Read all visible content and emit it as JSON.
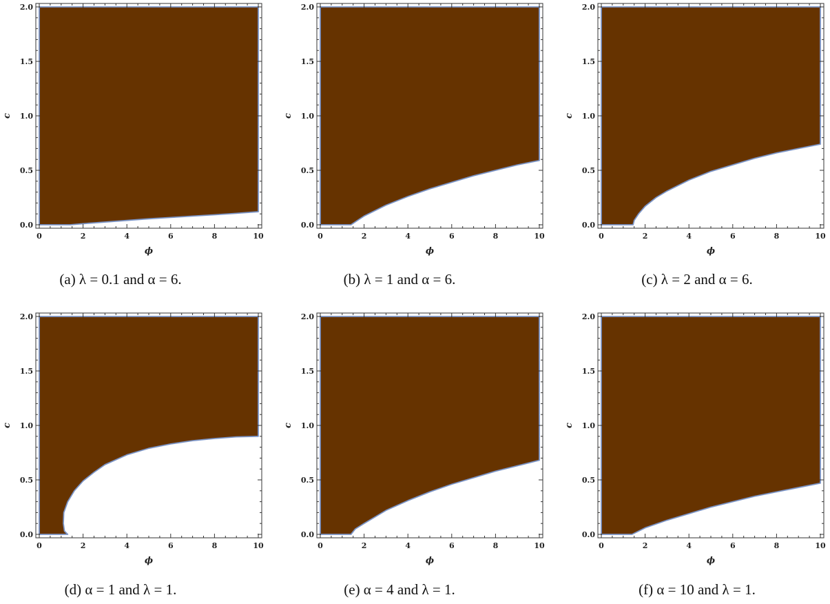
{
  "chart_data": [
    {
      "type": "area",
      "caption": "(a) λ = 0.1 and α = 6.",
      "xlabel": "ϕ",
      "ylabel": "c",
      "xlim": [
        0,
        10
      ],
      "ylim": [
        0,
        2
      ],
      "xticks": [
        "0",
        "2",
        "4",
        "6",
        "8",
        "10"
      ],
      "yticks": [
        "0.0",
        "0.5",
        "1.0",
        "1.5",
        "2.0"
      ],
      "fill_color": "#663300",
      "boundary_color": "#7b94c6",
      "region": "above boundary",
      "boundary": [
        [
          0,
          0
        ],
        [
          1.4,
          0
        ],
        [
          2,
          0.01
        ],
        [
          3,
          0.025
        ],
        [
          4,
          0.04
        ],
        [
          5,
          0.055
        ],
        [
          6,
          0.067
        ],
        [
          7,
          0.08
        ],
        [
          8,
          0.092
        ],
        [
          9,
          0.105
        ],
        [
          10,
          0.12
        ]
      ]
    },
    {
      "type": "area",
      "caption": "(b) λ = 1 and α = 6.",
      "xlabel": "ϕ",
      "ylabel": "c",
      "xlim": [
        0,
        10
      ],
      "ylim": [
        0,
        2
      ],
      "xticks": [
        "0",
        "2",
        "4",
        "6",
        "8",
        "10"
      ],
      "yticks": [
        "0.0",
        "0.5",
        "1.0",
        "1.5",
        "2.0"
      ],
      "fill_color": "#663300",
      "boundary_color": "#7b94c6",
      "region": "above boundary",
      "boundary": [
        [
          0,
          0
        ],
        [
          1.4,
          0
        ],
        [
          1.7,
          0.04
        ],
        [
          2,
          0.08
        ],
        [
          2.5,
          0.13
        ],
        [
          3,
          0.18
        ],
        [
          4,
          0.26
        ],
        [
          5,
          0.33
        ],
        [
          6,
          0.39
        ],
        [
          7,
          0.45
        ],
        [
          8,
          0.5
        ],
        [
          9,
          0.55
        ],
        [
          10,
          0.59
        ]
      ]
    },
    {
      "type": "area",
      "caption": "(c) λ = 2 and α = 6.",
      "xlabel": "ϕ",
      "ylabel": "c",
      "xlim": [
        0,
        10
      ],
      "ylim": [
        0,
        2
      ],
      "xticks": [
        "0",
        "2",
        "4",
        "6",
        "8",
        "10"
      ],
      "yticks": [
        "0.0",
        "0.5",
        "1.0",
        "1.5",
        "2.0"
      ],
      "fill_color": "#663300",
      "boundary_color": "#7b94c6",
      "region": "above boundary",
      "boundary": [
        [
          0,
          0
        ],
        [
          1.45,
          0
        ],
        [
          1.5,
          0.04
        ],
        [
          1.7,
          0.1
        ],
        [
          2,
          0.17
        ],
        [
          2.5,
          0.25
        ],
        [
          3,
          0.31
        ],
        [
          4,
          0.41
        ],
        [
          5,
          0.49
        ],
        [
          6,
          0.55
        ],
        [
          7,
          0.61
        ],
        [
          8,
          0.66
        ],
        [
          9,
          0.7
        ],
        [
          10,
          0.74
        ]
      ]
    },
    {
      "type": "area",
      "caption": "(d) α = 1 and λ = 1.",
      "xlabel": "ϕ",
      "ylabel": "c",
      "xlim": [
        0,
        10
      ],
      "ylim": [
        0,
        2
      ],
      "xticks": [
        "0",
        "2",
        "4",
        "6",
        "8",
        "10"
      ],
      "yticks": [
        "0.0",
        "0.5",
        "1.0",
        "1.5",
        "2.0"
      ],
      "fill_color": "#663300",
      "boundary_color": "#7b94c6",
      "region": "above boundary",
      "boundary": [
        [
          0,
          0
        ],
        [
          1.3,
          0
        ],
        [
          1.15,
          0.03
        ],
        [
          1.1,
          0.1
        ],
        [
          1.12,
          0.2
        ],
        [
          1.3,
          0.3
        ],
        [
          1.6,
          0.4
        ],
        [
          2,
          0.49
        ],
        [
          2.5,
          0.57
        ],
        [
          3,
          0.64
        ],
        [
          4,
          0.73
        ],
        [
          5,
          0.79
        ],
        [
          6,
          0.83
        ],
        [
          7,
          0.86
        ],
        [
          8,
          0.88
        ],
        [
          9,
          0.895
        ],
        [
          10,
          0.9
        ]
      ]
    },
    {
      "type": "area",
      "caption": "(e) α = 4 and λ = 1.",
      "xlabel": "ϕ",
      "ylabel": "c",
      "xlim": [
        0,
        10
      ],
      "ylim": [
        0,
        2
      ],
      "xticks": [
        "0",
        "2",
        "4",
        "6",
        "8",
        "10"
      ],
      "yticks": [
        "0.0",
        "0.5",
        "1.0",
        "1.5",
        "2.0"
      ],
      "fill_color": "#663300",
      "boundary_color": "#7b94c6",
      "region": "above boundary",
      "boundary": [
        [
          0,
          0
        ],
        [
          1.4,
          0
        ],
        [
          1.6,
          0.05
        ],
        [
          2,
          0.1
        ],
        [
          2.5,
          0.16
        ],
        [
          3,
          0.22
        ],
        [
          4,
          0.31
        ],
        [
          5,
          0.39
        ],
        [
          6,
          0.46
        ],
        [
          7,
          0.52
        ],
        [
          8,
          0.58
        ],
        [
          9,
          0.63
        ],
        [
          10,
          0.68
        ]
      ]
    },
    {
      "type": "area",
      "caption": "(f) α = 10 and λ = 1.",
      "xlabel": "ϕ",
      "ylabel": "c",
      "xlim": [
        0,
        10
      ],
      "ylim": [
        0,
        2
      ],
      "xticks": [
        "0",
        "2",
        "4",
        "6",
        "8",
        "10"
      ],
      "yticks": [
        "0.0",
        "0.5",
        "1.0",
        "1.5",
        "2.0"
      ],
      "fill_color": "#663300",
      "boundary_color": "#7b94c6",
      "region": "above boundary",
      "boundary": [
        [
          0,
          0
        ],
        [
          1.4,
          0
        ],
        [
          1.7,
          0.03
        ],
        [
          2,
          0.06
        ],
        [
          3,
          0.13
        ],
        [
          4,
          0.19
        ],
        [
          5,
          0.25
        ],
        [
          6,
          0.3
        ],
        [
          7,
          0.35
        ],
        [
          8,
          0.39
        ],
        [
          9,
          0.43
        ],
        [
          10,
          0.47
        ]
      ]
    }
  ]
}
